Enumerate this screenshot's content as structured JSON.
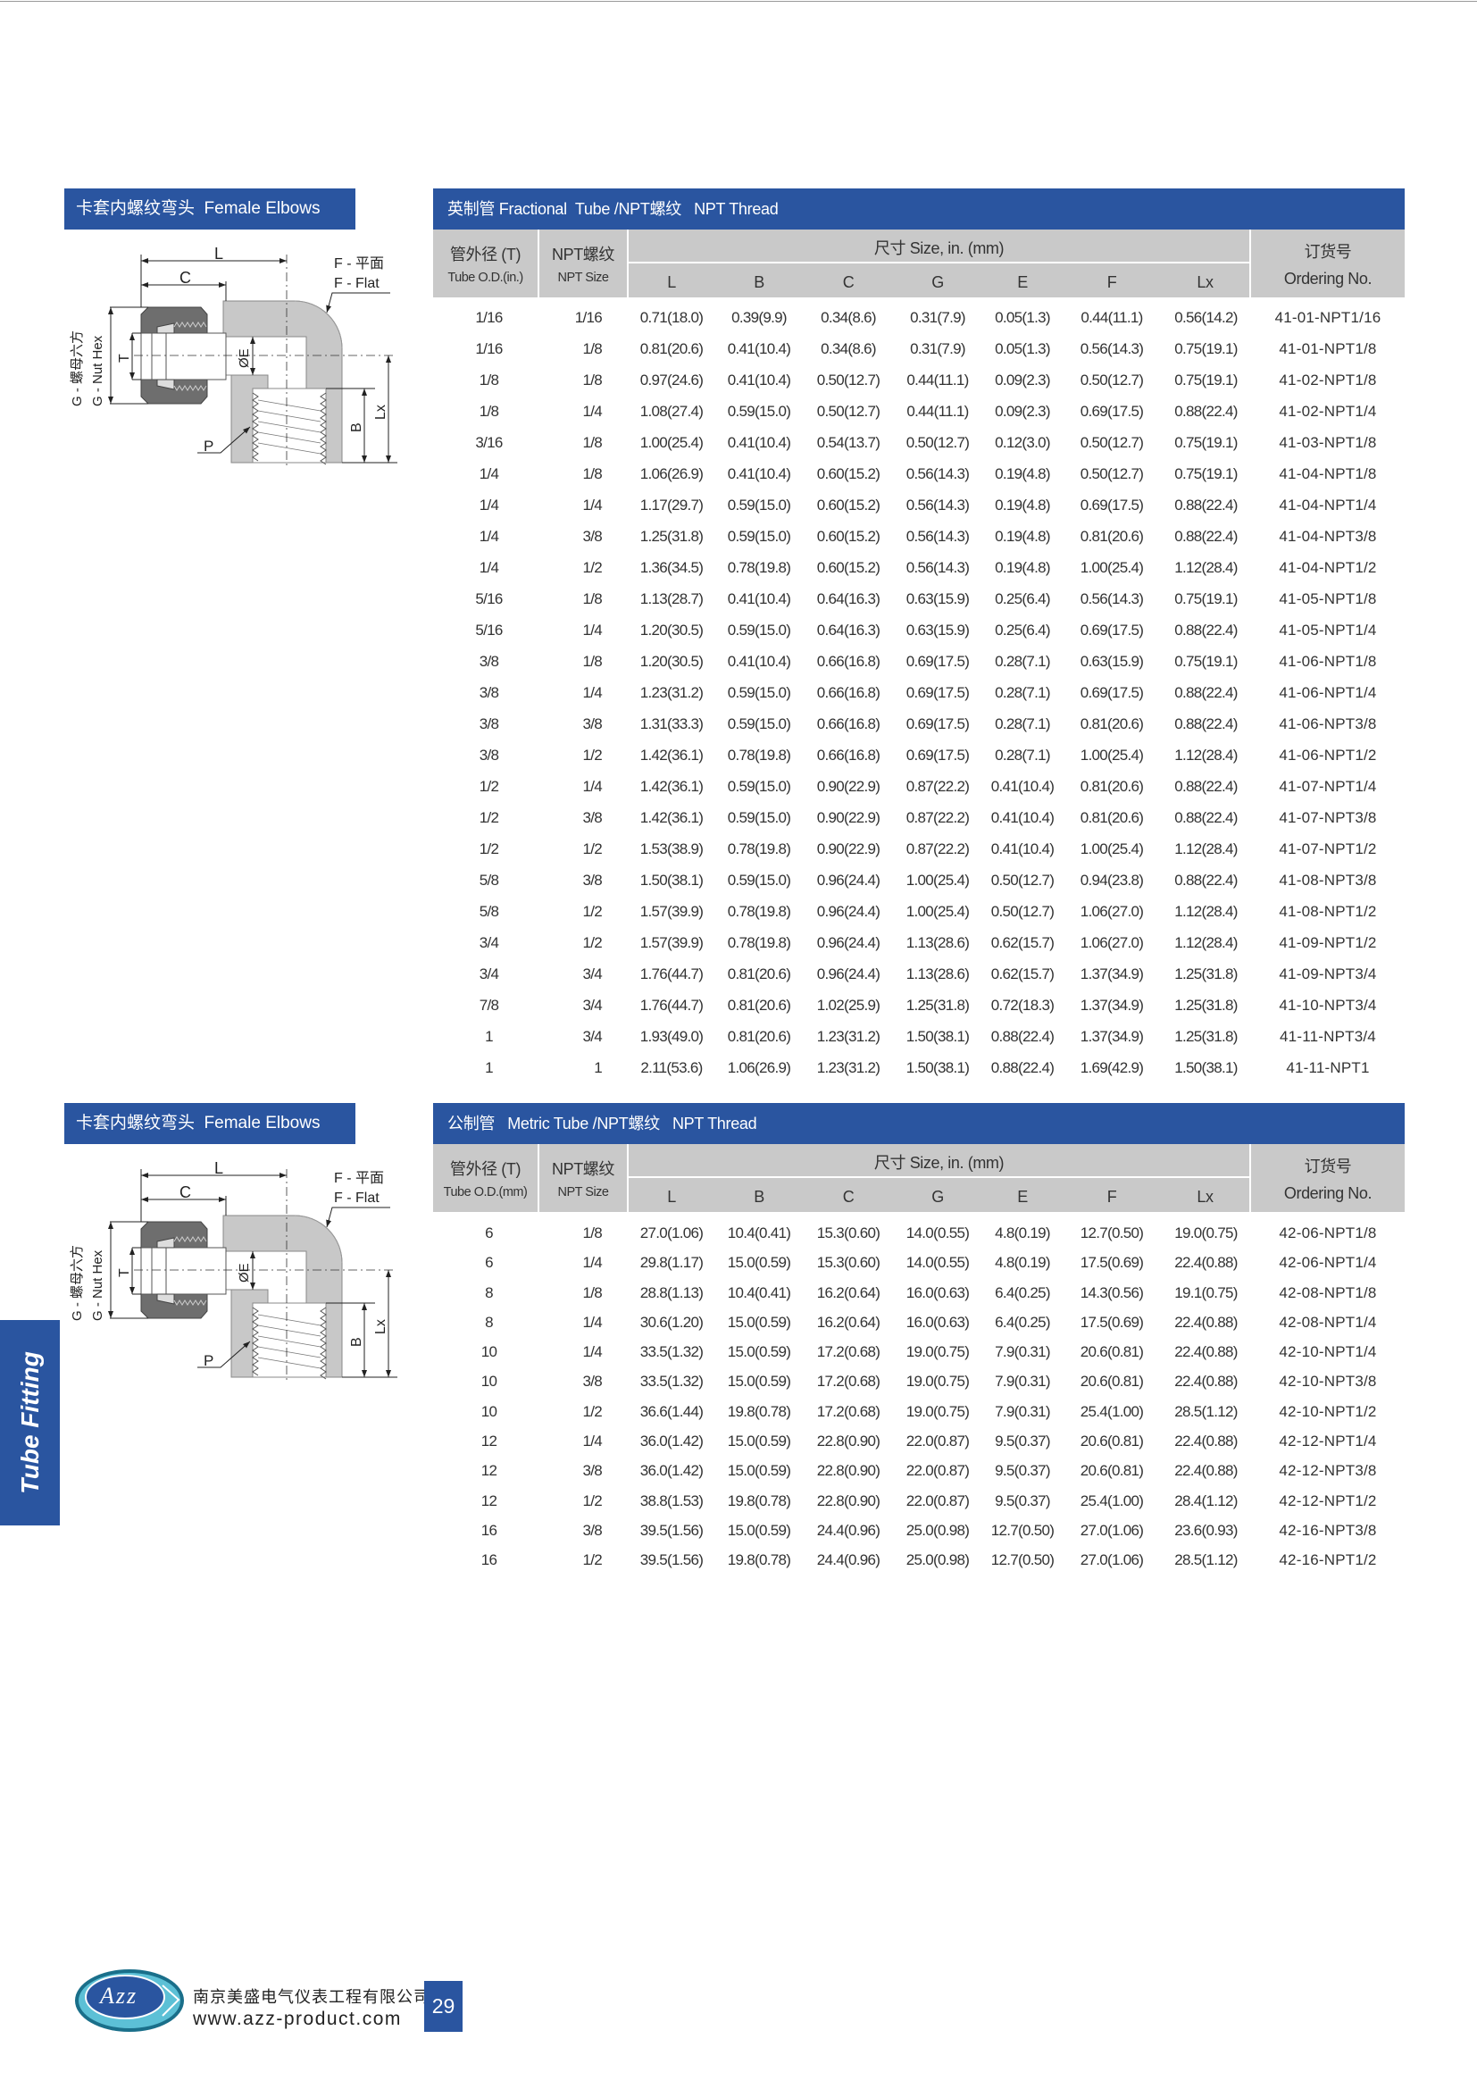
{
  "colors": {
    "brand_blue": "#2a55a0",
    "header_gray": "#c9c9c9",
    "body_gray": "#c8c8c8",
    "nut_gray": "#6e6e6e"
  },
  "side_tab": "Tube Fitting",
  "diagram_labels": {
    "L": "L",
    "C": "C",
    "F_cn": "F - 平面",
    "F_en": "F - Flat",
    "G_cn": "G - 螺母六方",
    "G_en": "G - Nut Hex",
    "T": "T",
    "E": "ØE",
    "B": "B",
    "Lx": "Lx",
    "P": "P"
  },
  "sections": [
    {
      "title_box": "卡套内螺纹弯头  Female Elbows",
      "table": {
        "title": "英制管 Fractional  Tube /NPT螺纹   NPT Thread",
        "headers": {
          "od_cn": "管外径 (T)",
          "od_en": "Tube O.D.(in.)",
          "npt_cn": "NPT螺纹",
          "npt_en": "NPT Size",
          "size": "尺寸 Size,  in. (mm)",
          "cols": [
            "L",
            "B",
            "C",
            "G",
            "E",
            "F",
            "Lx"
          ],
          "order_cn": "订货号",
          "order_en": "Ordering No."
        },
        "rows": [
          [
            "1/16",
            "1/16",
            "0.71(18.0)",
            "0.39(9.9)",
            "0.34(8.6)",
            "0.31(7.9)",
            "0.05(1.3)",
            "0.44(11.1)",
            "0.56(14.2)",
            "41-01-NPT1/16"
          ],
          [
            "1/16",
            "1/8",
            "0.81(20.6)",
            "0.41(10.4)",
            "0.34(8.6)",
            "0.31(7.9)",
            "0.05(1.3)",
            "0.56(14.3)",
            "0.75(19.1)",
            "41-01-NPT1/8"
          ],
          [
            "1/8",
            "1/8",
            "0.97(24.6)",
            "0.41(10.4)",
            "0.50(12.7)",
            "0.44(11.1)",
            "0.09(2.3)",
            "0.50(12.7)",
            "0.75(19.1)",
            "41-02-NPT1/8"
          ],
          [
            "1/8",
            "1/4",
            "1.08(27.4)",
            "0.59(15.0)",
            "0.50(12.7)",
            "0.44(11.1)",
            "0.09(2.3)",
            "0.69(17.5)",
            "0.88(22.4)",
            "41-02-NPT1/4"
          ],
          [
            "3/16",
            "1/8",
            "1.00(25.4)",
            "0.41(10.4)",
            "0.54(13.7)",
            "0.50(12.7)",
            "0.12(3.0)",
            "0.50(12.7)",
            "0.75(19.1)",
            "41-03-NPT1/8"
          ],
          [
            "1/4",
            "1/8",
            "1.06(26.9)",
            "0.41(10.4)",
            "0.60(15.2)",
            "0.56(14.3)",
            "0.19(4.8)",
            "0.50(12.7)",
            "0.75(19.1)",
            "41-04-NPT1/8"
          ],
          [
            "1/4",
            "1/4",
            "1.17(29.7)",
            "0.59(15.0)",
            "0.60(15.2)",
            "0.56(14.3)",
            "0.19(4.8)",
            "0.69(17.5)",
            "0.88(22.4)",
            "41-04-NPT1/4"
          ],
          [
            "1/4",
            "3/8",
            "1.25(31.8)",
            "0.59(15.0)",
            "0.60(15.2)",
            "0.56(14.3)",
            "0.19(4.8)",
            "0.81(20.6)",
            "0.88(22.4)",
            "41-04-NPT3/8"
          ],
          [
            "1/4",
            "1/2",
            "1.36(34.5)",
            "0.78(19.8)",
            "0.60(15.2)",
            "0.56(14.3)",
            "0.19(4.8)",
            "1.00(25.4)",
            "1.12(28.4)",
            "41-04-NPT1/2"
          ],
          [
            "5/16",
            "1/8",
            "1.13(28.7)",
            "0.41(10.4)",
            "0.64(16.3)",
            "0.63(15.9)",
            "0.25(6.4)",
            "0.56(14.3)",
            "0.75(19.1)",
            "41-05-NPT1/8"
          ],
          [
            "5/16",
            "1/4",
            "1.20(30.5)",
            "0.59(15.0)",
            "0.64(16.3)",
            "0.63(15.9)",
            "0.25(6.4)",
            "0.69(17.5)",
            "0.88(22.4)",
            "41-05-NPT1/4"
          ],
          [
            "3/8",
            "1/8",
            "1.20(30.5)",
            "0.41(10.4)",
            "0.66(16.8)",
            "0.69(17.5)",
            "0.28(7.1)",
            "0.63(15.9)",
            "0.75(19.1)",
            "41-06-NPT1/8"
          ],
          [
            "3/8",
            "1/4",
            "1.23(31.2)",
            "0.59(15.0)",
            "0.66(16.8)",
            "0.69(17.5)",
            "0.28(7.1)",
            "0.69(17.5)",
            "0.88(22.4)",
            "41-06-NPT1/4"
          ],
          [
            "3/8",
            "3/8",
            "1.31(33.3)",
            "0.59(15.0)",
            "0.66(16.8)",
            "0.69(17.5)",
            "0.28(7.1)",
            "0.81(20.6)",
            "0.88(22.4)",
            "41-06-NPT3/8"
          ],
          [
            "3/8",
            "1/2",
            "1.42(36.1)",
            "0.78(19.8)",
            "0.66(16.8)",
            "0.69(17.5)",
            "0.28(7.1)",
            "1.00(25.4)",
            "1.12(28.4)",
            "41-06-NPT1/2"
          ],
          [
            "1/2",
            "1/4",
            "1.42(36.1)",
            "0.59(15.0)",
            "0.90(22.9)",
            "0.87(22.2)",
            "0.41(10.4)",
            "0.81(20.6)",
            "0.88(22.4)",
            "41-07-NPT1/4"
          ],
          [
            "1/2",
            "3/8",
            "1.42(36.1)",
            "0.59(15.0)",
            "0.90(22.9)",
            "0.87(22.2)",
            "0.41(10.4)",
            "0.81(20.6)",
            "0.88(22.4)",
            "41-07-NPT3/8"
          ],
          [
            "1/2",
            "1/2",
            "1.53(38.9)",
            "0.78(19.8)",
            "0.90(22.9)",
            "0.87(22.2)",
            "0.41(10.4)",
            "1.00(25.4)",
            "1.12(28.4)",
            "41-07-NPT1/2"
          ],
          [
            "5/8",
            "3/8",
            "1.50(38.1)",
            "0.59(15.0)",
            "0.96(24.4)",
            "1.00(25.4)",
            "0.50(12.7)",
            "0.94(23.8)",
            "0.88(22.4)",
            "41-08-NPT3/8"
          ],
          [
            "5/8",
            "1/2",
            "1.57(39.9)",
            "0.78(19.8)",
            "0.96(24.4)",
            "1.00(25.4)",
            "0.50(12.7)",
            "1.06(27.0)",
            "1.12(28.4)",
            "41-08-NPT1/2"
          ],
          [
            "3/4",
            "1/2",
            "1.57(39.9)",
            "0.78(19.8)",
            "0.96(24.4)",
            "1.13(28.6)",
            "0.62(15.7)",
            "1.06(27.0)",
            "1.12(28.4)",
            "41-09-NPT1/2"
          ],
          [
            "3/4",
            "3/4",
            "1.76(44.7)",
            "0.81(20.6)",
            "0.96(24.4)",
            "1.13(28.6)",
            "0.62(15.7)",
            "1.37(34.9)",
            "1.25(31.8)",
            "41-09-NPT3/4"
          ],
          [
            "7/8",
            "3/4",
            "1.76(44.7)",
            "0.81(20.6)",
            "1.02(25.9)",
            "1.25(31.8)",
            "0.72(18.3)",
            "1.37(34.9)",
            "1.25(31.8)",
            "41-10-NPT3/4"
          ],
          [
            "1",
            "3/4",
            "1.93(49.0)",
            "0.81(20.6)",
            "1.23(31.2)",
            "1.50(38.1)",
            "0.88(22.4)",
            "1.37(34.9)",
            "1.25(31.8)",
            "41-11-NPT3/4"
          ],
          [
            "1",
            "1",
            "2.11(53.6)",
            "1.06(26.9)",
            "1.23(31.2)",
            "1.50(38.1)",
            "0.88(22.4)",
            "1.69(42.9)",
            "1.50(38.1)",
            "41-11-NPT1"
          ]
        ]
      }
    },
    {
      "title_box": "卡套内螺纹弯头  Female Elbows",
      "table": {
        "title": "公制管   Metric Tube /NPT螺纹   NPT Thread",
        "headers": {
          "od_cn": "管外径 (T)",
          "od_en": "Tube O.D.(mm)",
          "npt_cn": "NPT螺纹",
          "npt_en": "NPT Size",
          "size": "尺寸 Size,  in. (mm)",
          "cols": [
            "L",
            "B",
            "C",
            "G",
            "E",
            "F",
            "Lx"
          ],
          "order_cn": "订货号",
          "order_en": "Ordering No."
        },
        "rows": [
          [
            "6",
            "1/8",
            "27.0(1.06)",
            "10.4(0.41)",
            "15.3(0.60)",
            "14.0(0.55)",
            "4.8(0.19)",
            "12.7(0.50)",
            "19.0(0.75)",
            "42-06-NPT1/8"
          ],
          [
            "6",
            "1/4",
            "29.8(1.17)",
            "15.0(0.59)",
            "15.3(0.60)",
            "14.0(0.55)",
            "4.8(0.19)",
            "17.5(0.69)",
            "22.4(0.88)",
            "42-06-NPT1/4"
          ],
          [
            "8",
            "1/8",
            "28.8(1.13)",
            "10.4(0.41)",
            "16.2(0.64)",
            "16.0(0.63)",
            "6.4(0.25)",
            "14.3(0.56)",
            "19.1(0.75)",
            "42-08-NPT1/8"
          ],
          [
            "8",
            "1/4",
            "30.6(1.20)",
            "15.0(0.59)",
            "16.2(0.64)",
            "16.0(0.63)",
            "6.4(0.25)",
            "17.5(0.69)",
            "22.4(0.88)",
            "42-08-NPT1/4"
          ],
          [
            "10",
            "1/4",
            "33.5(1.32)",
            "15.0(0.59)",
            "17.2(0.68)",
            "19.0(0.75)",
            "7.9(0.31)",
            "20.6(0.81)",
            "22.4(0.88)",
            "42-10-NPT1/4"
          ],
          [
            "10",
            "3/8",
            "33.5(1.32)",
            "15.0(0.59)",
            "17.2(0.68)",
            "19.0(0.75)",
            "7.9(0.31)",
            "20.6(0.81)",
            "22.4(0.88)",
            "42-10-NPT3/8"
          ],
          [
            "10",
            "1/2",
            "36.6(1.44)",
            "19.8(0.78)",
            "17.2(0.68)",
            "19.0(0.75)",
            "7.9(0.31)",
            "25.4(1.00)",
            "28.5(1.12)",
            "42-10-NPT1/2"
          ],
          [
            "12",
            "1/4",
            "36.0(1.42)",
            "15.0(0.59)",
            "22.8(0.90)",
            "22.0(0.87)",
            "9.5(0.37)",
            "20.6(0.81)",
            "22.4(0.88)",
            "42-12-NPT1/4"
          ],
          [
            "12",
            "3/8",
            "36.0(1.42)",
            "15.0(0.59)",
            "22.8(0.90)",
            "22.0(0.87)",
            "9.5(0.37)",
            "20.6(0.81)",
            "22.4(0.88)",
            "42-12-NPT3/8"
          ],
          [
            "12",
            "1/2",
            "38.8(1.53)",
            "19.8(0.78)",
            "22.8(0.90)",
            "22.0(0.87)",
            "9.5(0.37)",
            "25.4(1.00)",
            "28.4(1.12)",
            "42-12-NPT1/2"
          ],
          [
            "16",
            "3/8",
            "39.5(1.56)",
            "15.0(0.59)",
            "24.4(0.96)",
            "25.0(0.98)",
            "12.7(0.50)",
            "27.0(1.06)",
            "23.6(0.93)",
            "42-16-NPT3/8"
          ],
          [
            "16",
            "1/2",
            "39.5(1.56)",
            "19.8(0.78)",
            "24.4(0.96)",
            "25.0(0.98)",
            "12.7(0.50)",
            "27.0(1.06)",
            "28.5(1.12)",
            "42-16-NPT1/2"
          ]
        ]
      }
    }
  ],
  "footer": {
    "logo_text": "Azz",
    "company": "南京美盛电气仪表工程有限公司",
    "url": "www.azz-product.com",
    "page": "29"
  }
}
